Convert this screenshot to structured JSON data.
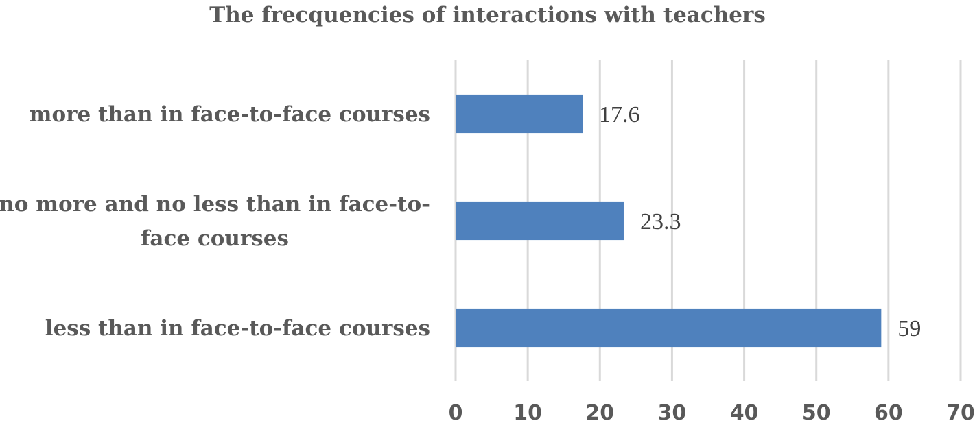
{
  "chart_data": {
    "type": "bar",
    "orientation": "horizontal",
    "title": "The frecquencies of interactions with teachers",
    "categories": [
      [
        "more than in face-to-face courses"
      ],
      [
        "no more and no less than in face-to-",
        "face courses"
      ],
      [
        "less than in face-to-face courses"
      ]
    ],
    "values": [
      17.6,
      23.3,
      59
    ],
    "value_labels": [
      "17.6",
      "23.3",
      "59"
    ],
    "xlim": [
      0,
      70
    ],
    "x_ticks": [
      0,
      10,
      20,
      30,
      40,
      50,
      60,
      70
    ],
    "xlabel": "",
    "ylabel": "",
    "grid": true,
    "bar_color": "#4f81bd",
    "grid_color": "#d9d9d9",
    "text_color": "#595959"
  }
}
